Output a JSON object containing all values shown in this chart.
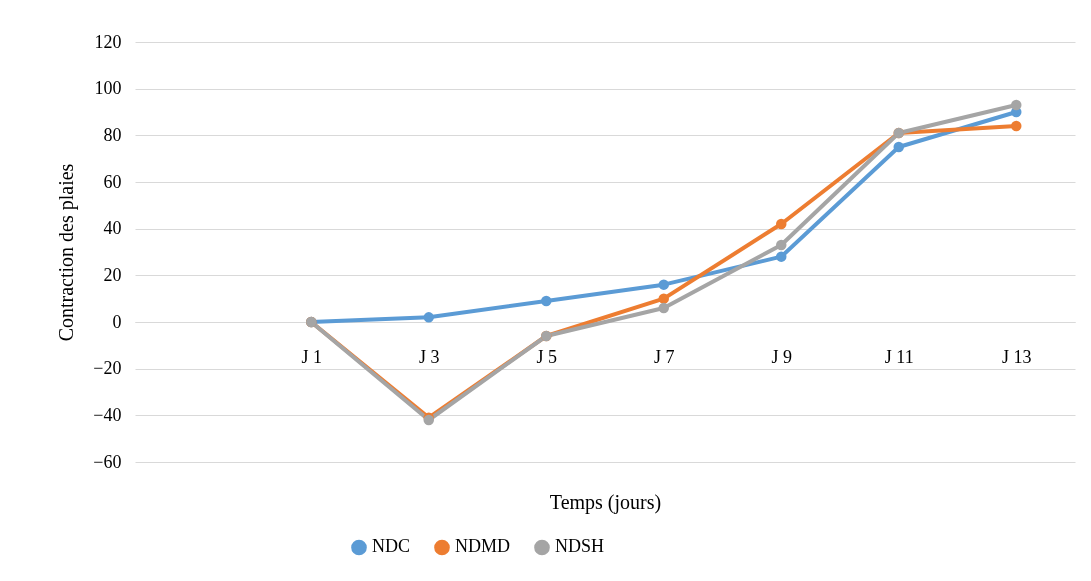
{
  "chart_data": {
    "type": "line",
    "xlabel": "Temps (jours)",
    "ylabel": "Contraction des plaies",
    "categories": [
      null,
      "J 1",
      "J 3",
      "J 5",
      "J 7",
      "J 9",
      "J 11",
      "J 13"
    ],
    "series": [
      {
        "name": "NDC",
        "color": "#5b9bd5",
        "values": [
          null,
          0,
          2,
          9,
          16,
          28,
          75,
          90
        ]
      },
      {
        "name": "NDMD",
        "color": "#ed7d31",
        "values": [
          null,
          0,
          -41,
          -6,
          10,
          42,
          81,
          84
        ]
      },
      {
        "name": "NDSH",
        "color": "#a5a5a5",
        "values": [
          null,
          0,
          -42,
          -6,
          6,
          33,
          81,
          93
        ]
      }
    ],
    "ylim": [
      -60,
      120
    ],
    "yticks": [
      -60,
      -40,
      -20,
      0,
      20,
      40,
      60,
      80,
      100,
      120
    ],
    "grid": "y",
    "legend": "bottom",
    "marker": "circle",
    "line_style": "solid"
  }
}
